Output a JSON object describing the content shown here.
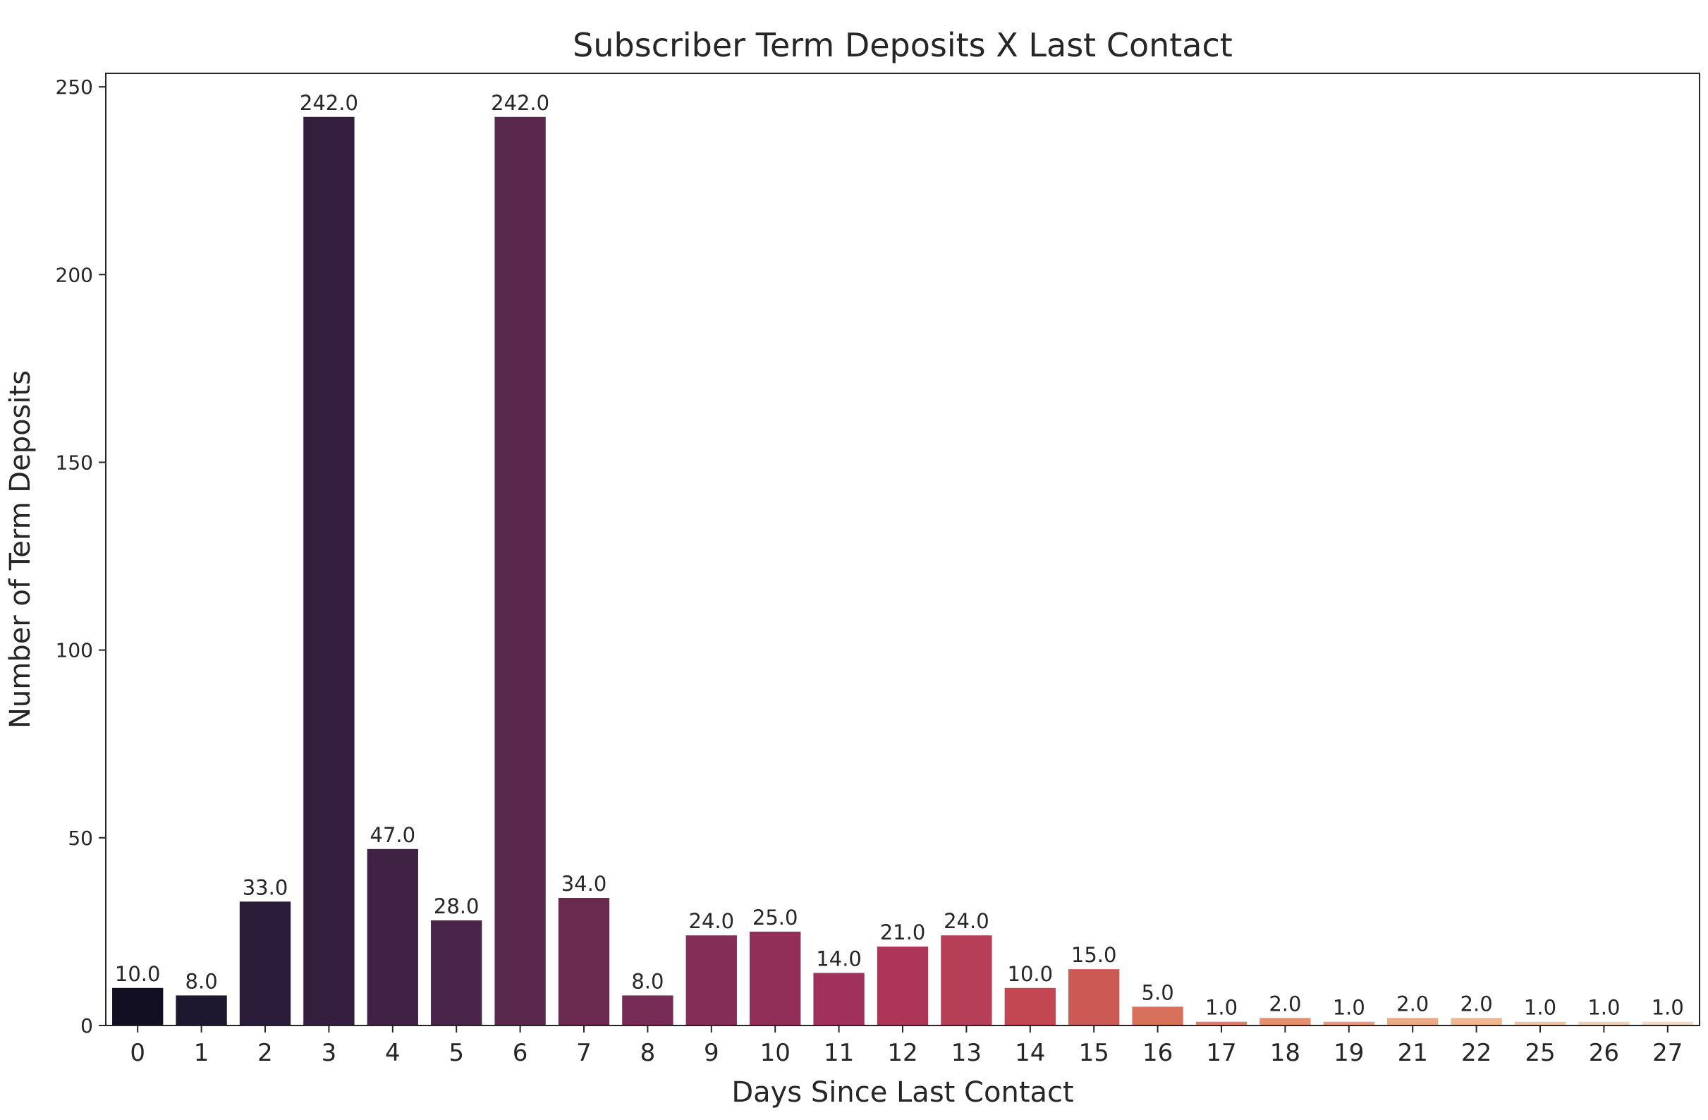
{
  "chart_data": {
    "type": "bar",
    "title": "Subscriber Term Deposits X Last Contact",
    "xlabel": "Days Since Last Contact",
    "ylabel": "Number of Term Deposits",
    "categories": [
      "0",
      "1",
      "2",
      "3",
      "4",
      "5",
      "6",
      "7",
      "8",
      "9",
      "10",
      "11",
      "12",
      "13",
      "14",
      "15",
      "16",
      "17",
      "18",
      "19",
      "21",
      "22",
      "25",
      "26",
      "27"
    ],
    "values": [
      10,
      8,
      33,
      242,
      47,
      28,
      242,
      34,
      8,
      24,
      25,
      14,
      21,
      24,
      10,
      15,
      5,
      1,
      2,
      1,
      2,
      2,
      1,
      1,
      1
    ],
    "value_labels": [
      "10.0",
      "8.0",
      "33.0",
      "242.0",
      "47.0",
      "28.0",
      "242.0",
      "34.0",
      "8.0",
      "24.0",
      "25.0",
      "14.0",
      "21.0",
      "24.0",
      "10.0",
      "15.0",
      "5.0",
      "1.0",
      "2.0",
      "1.0",
      "2.0",
      "2.0",
      "1.0",
      "1.0",
      "1.0"
    ],
    "ylim": [
      0,
      253.6
    ],
    "yticks": [
      0,
      50,
      100,
      150,
      200,
      250
    ],
    "ytick_labels": [
      "0",
      "50",
      "100",
      "150",
      "200",
      "250"
    ],
    "grid": false,
    "legend": "none",
    "colors": [
      "#120f22",
      "#1d1730",
      "#2a1c38",
      "#331f3d",
      "#3f2244",
      "#4b2449",
      "#5a284c",
      "#6a2a50",
      "#772c55",
      "#842e57",
      "#912f59",
      "#a0315a",
      "#ac3558",
      "#b73e57",
      "#c24753",
      "#cc5953",
      "#d8715b",
      "#df8162",
      "#e59070",
      "#e99c7a",
      "#ecab88",
      "#eeb896",
      "#f0c4a5",
      "#f2d0b6",
      "#f4dbc5"
    ]
  }
}
